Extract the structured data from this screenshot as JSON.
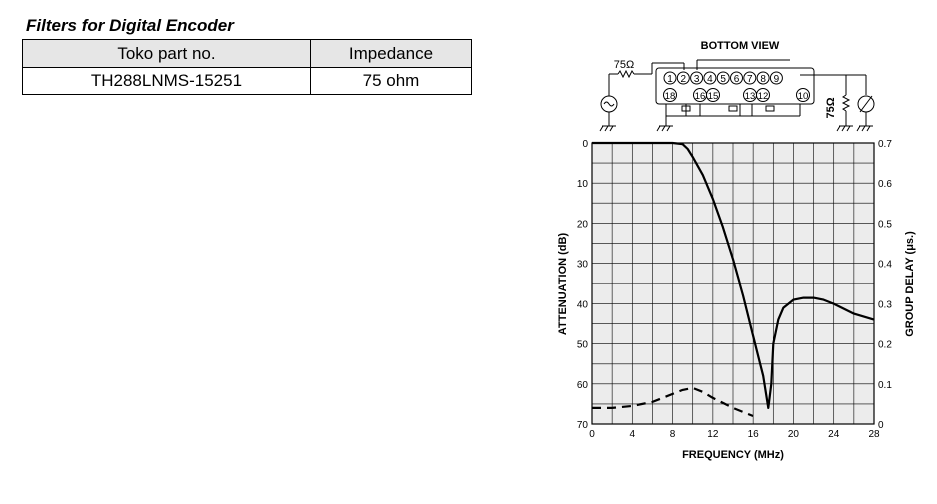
{
  "heading": "Filters for Digital Encoder",
  "table": {
    "headers": [
      "Toko part no.",
      "Impedance"
    ],
    "rows": [
      [
        "TH288LNMS-15251",
        "75 ohm"
      ]
    ]
  },
  "schematic": {
    "view_label": "BOTTOM VIEW",
    "source_resistor": "75Ω",
    "load_resistor": "75Ω",
    "pins_top": [
      "1",
      "2",
      "3",
      "4",
      "5",
      "6",
      "7",
      "8",
      "9"
    ],
    "pins_bottom": [
      "18",
      "16",
      "15",
      "13",
      "12",
      "10"
    ]
  },
  "chart_data": {
    "type": "line",
    "xlabel": "FREQUENCY (MHz)",
    "ylabel": "ATTENUATION (dB)",
    "y2label": "GROUP DELAY (μs.)",
    "x_ticks": [
      0,
      4,
      8,
      12,
      16,
      20,
      24,
      28
    ],
    "y_ticks": [
      0,
      10,
      20,
      30,
      40,
      50,
      60,
      70
    ],
    "y2_ticks": [
      "0",
      "0.1",
      "0.2",
      "0.3",
      "0.4",
      "0.5",
      "0.6",
      "0.7"
    ],
    "xlim": [
      0,
      28
    ],
    "ylim": [
      0,
      70
    ],
    "y2lim": [
      0,
      0.7
    ],
    "y_inverted": true,
    "grid": true,
    "series": [
      {
        "axis": "attenuation",
        "style": "solid",
        "x": [
          0,
          4,
          8,
          9,
          9.5,
          10,
          11,
          12,
          13,
          14,
          15,
          16,
          17,
          17.5,
          17.8,
          18,
          18.5,
          19,
          20,
          21,
          22,
          23,
          24,
          26,
          28
        ],
        "y": [
          0,
          0,
          0,
          0.3,
          1.5,
          3.5,
          8,
          14,
          21,
          29,
          38,
          48,
          58,
          66,
          60,
          50,
          44,
          41,
          39,
          38.5,
          38.5,
          39,
          40,
          42.5,
          44
        ]
      },
      {
        "axis": "group_delay",
        "style": "dashed",
        "x": [
          0,
          2,
          4,
          6,
          8,
          9,
          10,
          11,
          12,
          14,
          16
        ],
        "y": [
          0.04,
          0.04,
          0.045,
          0.055,
          0.075,
          0.085,
          0.09,
          0.08,
          0.065,
          0.04,
          0.02
        ]
      }
    ]
  }
}
